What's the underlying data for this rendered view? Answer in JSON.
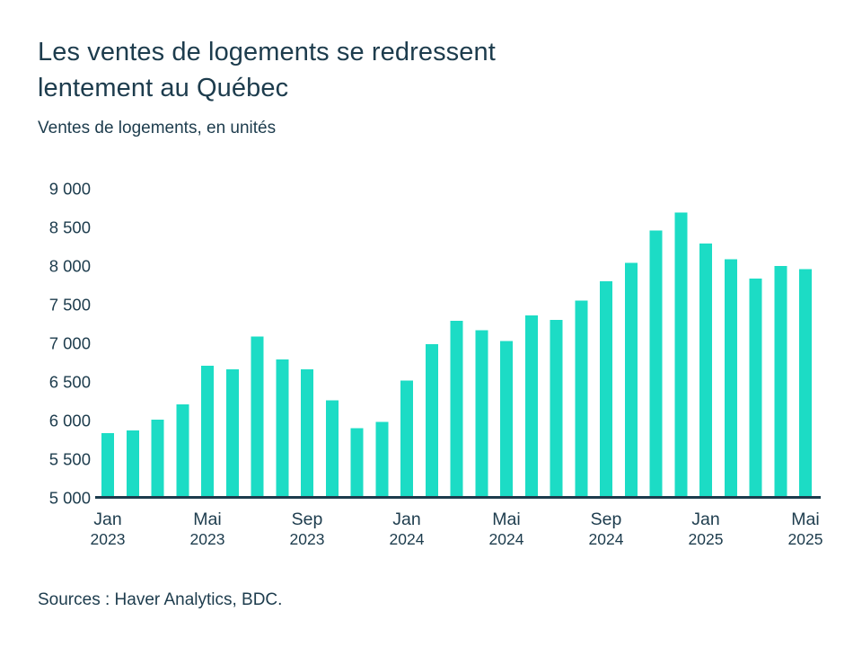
{
  "header": {
    "title": "Les ventes de logements se redressent lentement au Québec",
    "subtitle": "Ventes de logements, en unités"
  },
  "footer": {
    "source": "Sources : Haver Analytics, BDC."
  },
  "colors": {
    "bar": "#1cdcc5",
    "text": "#1d3c4d",
    "axis": "#1d3c4d",
    "background": "#ffffff"
  },
  "chart_data": {
    "type": "bar",
    "title": "Les ventes de logements se redressent lentement au Québec",
    "subtitle": "Ventes de logements, en unités",
    "ylabel": "Ventes de logements, en unités",
    "xlabel": "",
    "categories": [
      "Jan 2023",
      "Fév 2023",
      "Mar 2023",
      "Avr 2023",
      "Mai 2023",
      "Juin 2023",
      "Juil 2023",
      "Août 2023",
      "Sep 2023",
      "Oct 2023",
      "Nov 2023",
      "Déc 2023",
      "Jan 2024",
      "Fév 2024",
      "Mar 2024",
      "Avr 2024",
      "Mai 2024",
      "Juin 2024",
      "Juil 2024",
      "Août 2024",
      "Sep 2024",
      "Oct 2024",
      "Nov 2024",
      "Déc 2024",
      "Jan 2025",
      "Fév 2025",
      "Mar 2025",
      "Avr 2025",
      "Mai 2025"
    ],
    "values": [
      5840,
      5870,
      6010,
      6210,
      6710,
      6660,
      7090,
      6790,
      6660,
      6260,
      5900,
      5980,
      6520,
      6990,
      7290,
      7170,
      7030,
      7360,
      7300,
      7550,
      7800,
      8040,
      8460,
      8690,
      8290,
      8090,
      7840,
      8000,
      7960
    ],
    "ylim": [
      5000,
      9000
    ],
    "y_ticks": [
      9000,
      8500,
      8000,
      7500,
      7000,
      6500,
      6000,
      5500,
      5000
    ],
    "y_tick_labels": [
      "9 000",
      "8 500",
      "8 000",
      "7 500",
      "7 000",
      "6 500",
      "6 000",
      "5 500",
      "5 000"
    ],
    "x_ticks": [
      {
        "index": 0,
        "month": "Jan",
        "year": "2023"
      },
      {
        "index": 4,
        "month": "Mai",
        "year": "2023"
      },
      {
        "index": 8,
        "month": "Sep",
        "year": "2023"
      },
      {
        "index": 12,
        "month": "Jan",
        "year": "2024"
      },
      {
        "index": 16,
        "month": "Mai",
        "year": "2024"
      },
      {
        "index": 20,
        "month": "Sep",
        "year": "2024"
      },
      {
        "index": 24,
        "month": "Jan",
        "year": "2025"
      },
      {
        "index": 28,
        "month": "Mai",
        "year": "2025"
      }
    ],
    "grid": false,
    "legend": null,
    "source": "Sources : Haver Analytics, BDC."
  }
}
